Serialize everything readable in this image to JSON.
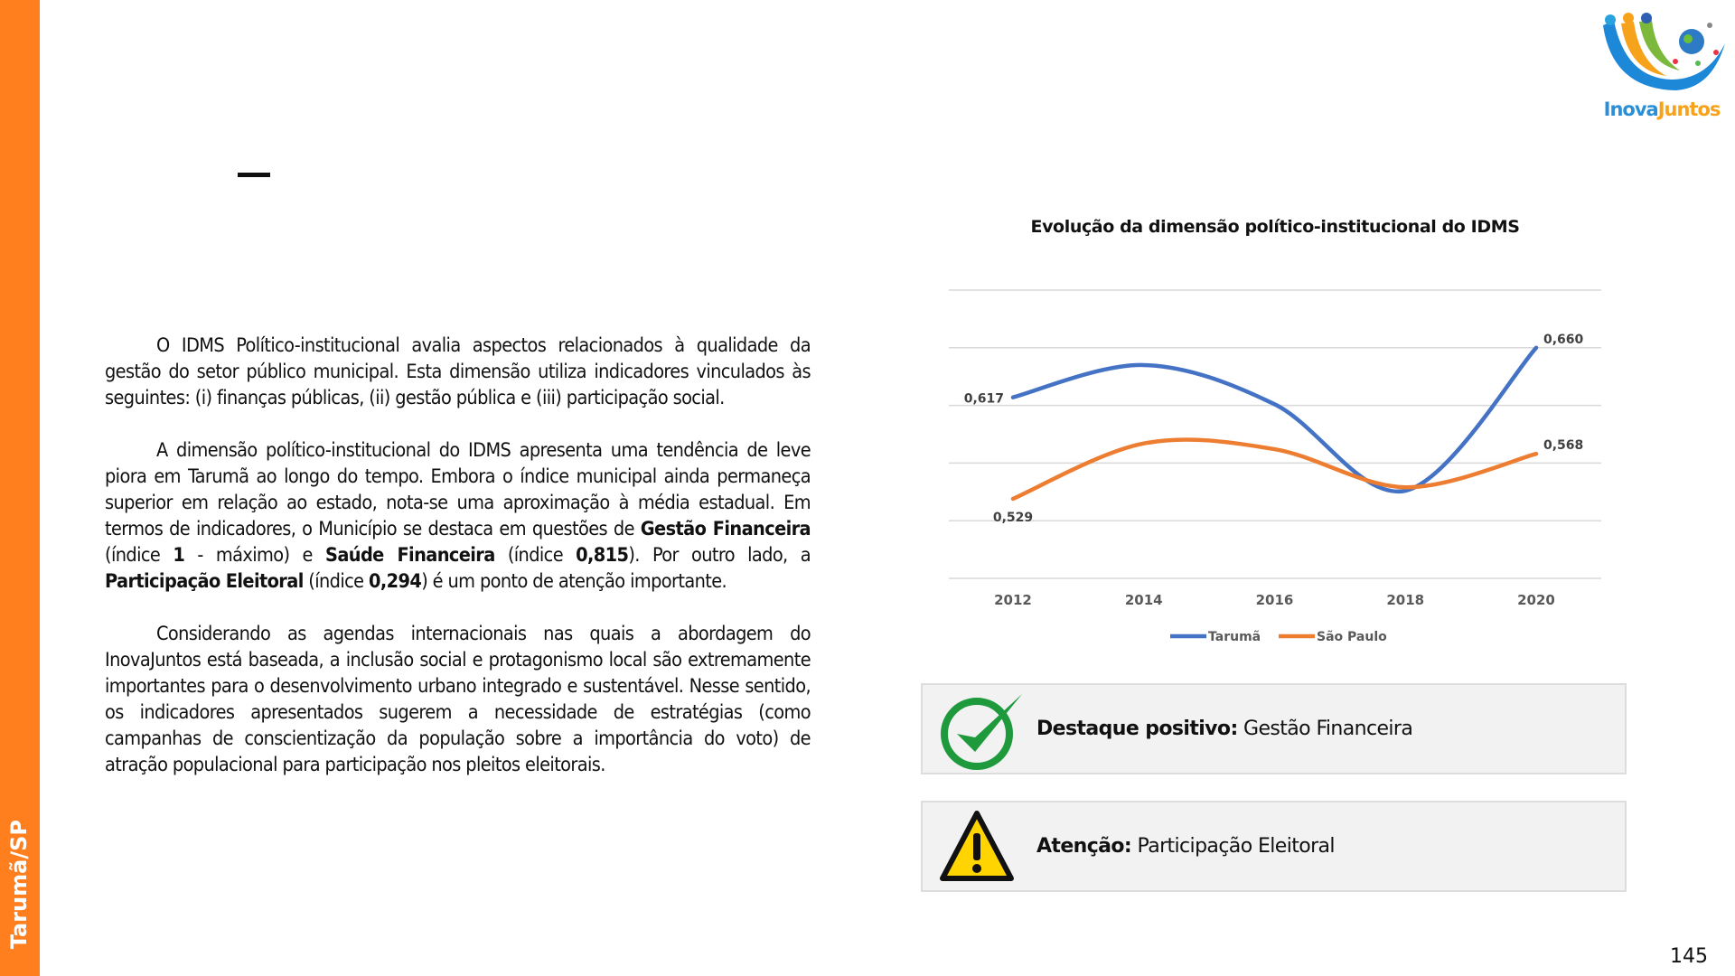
{
  "sidebar": {
    "label": "Tarumã/SP",
    "color": "#FF7F1F"
  },
  "logo": {
    "text": "InovaJuntos"
  },
  "paragraphs": [
    [
      {
        "t": "O IDMS Político-institucional avalia aspectos relacionados à qualidade da gestão do setor público municipal. Esta dimensão utiliza indicadores vinculados às seguintes: (i) finanças públicas, (ii) gestão pública e (iii) participação social.",
        "b": false
      }
    ],
    [
      {
        "t": "A dimensão político-institucional do IDMS apresenta uma tendência de leve piora em Tarumã ao longo do tempo. Embora o índice municipal ainda permaneça superior em relação ao estado, nota-se uma aproximação à média estadual. Em termos de indicadores, o Município se destaca em questões de ",
        "b": false
      },
      {
        "t": "Gestão Financeira",
        "b": true
      },
      {
        "t": " (índice ",
        "b": false
      },
      {
        "t": "1",
        "b": true
      },
      {
        "t": " - máximo) e ",
        "b": false
      },
      {
        "t": "Saúde Financeira",
        "b": true
      },
      {
        "t": " (índice ",
        "b": false
      },
      {
        "t": "0,815",
        "b": true
      },
      {
        "t": "). Por outro lado, a ",
        "b": false
      },
      {
        "t": "Participação Eleitoral",
        "b": true
      },
      {
        "t": " (índice ",
        "b": false
      },
      {
        "t": "0,294",
        "b": true
      },
      {
        "t": ") é um ponto de atenção importante.",
        "b": false
      }
    ],
    [
      {
        "t": "Considerando as agendas internacionais nas quais a abordagem do InovaJuntos está baseada, a inclusão social e protagonismo local são extremamente importantes para o desenvolvimento urbano integrado e sustentável. Nesse sentido, os indicadores apresentados sugerem a necessidade de estratégias (como campanhas de conscientização da população sobre a importância do voto) de atração populacional para participação nos pleitos eleitorais.",
        "b": false
      }
    ]
  ],
  "chart_data": {
    "type": "line",
    "title": "Evolução da dimensão político-institucional do IDMS",
    "categories": [
      "2012",
      "2014",
      "2016",
      "2018",
      "2020"
    ],
    "series": [
      {
        "name": "Tarumã",
        "color": "#4472C4",
        "values": [
          0.617,
          0.645,
          0.611,
          0.536,
          0.66
        ],
        "labels": [
          "0,617",
          "",
          "",
          "",
          "0,660"
        ]
      },
      {
        "name": "São Paulo",
        "color": "#ED7D31",
        "values": [
          0.529,
          0.577,
          0.572,
          0.539,
          0.568
        ],
        "labels": [
          "0,529",
          "",
          "",
          "",
          "0,568"
        ]
      }
    ],
    "ylim": [
      0.46,
      0.71
    ],
    "grid": true,
    "smooth": true,
    "legend": "bottom"
  },
  "highlights": [
    {
      "icon": "check-circle-icon",
      "bold": "Destaque positivo:",
      "text": " Gestão Financeira"
    },
    {
      "icon": "warning-icon",
      "bold": "Atenção:",
      "text": " Participação Eleitoral"
    }
  ],
  "page_number": "145"
}
